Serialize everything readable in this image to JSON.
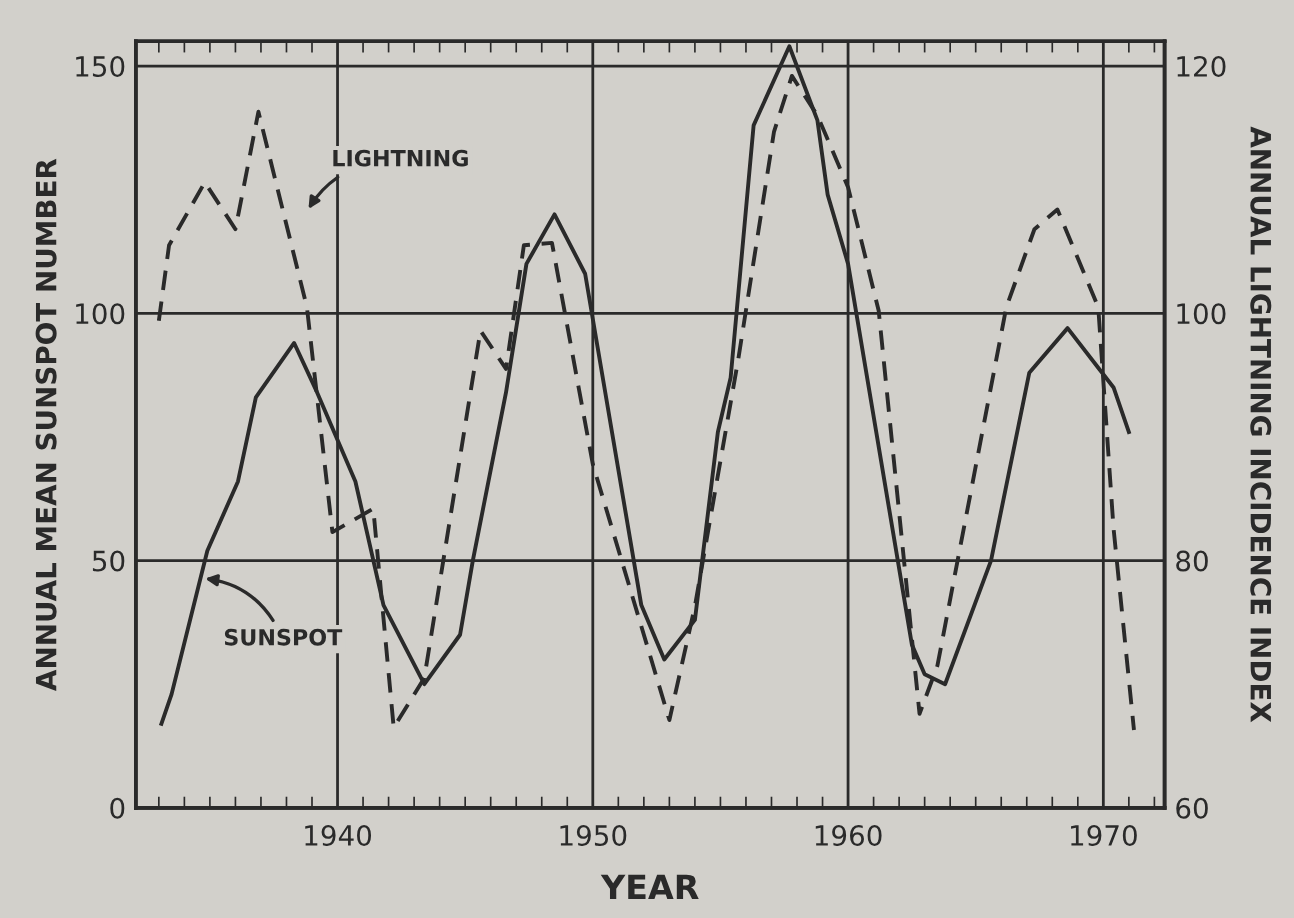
{
  "chart_data": {
    "type": "line",
    "xlabel": "YEAR",
    "ylabel": "ANNUAL MEAN SUNSPOT NUMBER",
    "y2label": "ANNUAL LIGHTNING INCIDENCE INDEX",
    "xlim": [
      1932.1,
      1972.4
    ],
    "xticks": [
      1940,
      1950,
      1960,
      1970
    ],
    "ylim": [
      0,
      155
    ],
    "yticks": [
      0,
      50,
      100,
      150
    ],
    "y2lim": [
      60,
      122
    ],
    "y2ticks": [
      60,
      80,
      100,
      120
    ],
    "grid": true,
    "marker": "none",
    "series": [
      {
        "name": "SUNSPOT",
        "color": "#2a2a2a",
        "line_style": "solid",
        "x": [
          1933.1,
          1933.5,
          1934.9,
          1936.1,
          1936.8,
          1938.3,
          1939.2,
          1940.7,
          1941.8,
          1942.2,
          1943.4,
          1944.8,
          1945.3,
          1946.6,
          1947.4,
          1948.5,
          1949.7,
          1951.9,
          1952.8,
          1954.0,
          1954.9,
          1955.4,
          1956.3,
          1957.7,
          1958.8,
          1959.2,
          1960.0,
          1962.5,
          1963.0,
          1963.8,
          1965.6,
          1967.1,
          1968.6,
          1969.8,
          1970.4,
          1971.0
        ],
        "values": [
          17,
          23,
          52,
          66,
          83,
          94,
          84,
          66,
          41,
          37,
          25,
          35,
          50,
          84,
          110,
          120,
          108,
          41,
          30,
          38,
          76,
          87,
          138,
          154,
          139,
          124,
          110,
          33,
          27,
          25,
          50,
          88,
          97,
          89,
          85,
          76
        ]
      },
      {
        "name": "LIGHTNING",
        "color": "#2a2a2a",
        "line_style": "dashed",
        "axis": "y2",
        "x": [
          1933.0,
          1933.4,
          1934.8,
          1936.0,
          1936.9,
          1938.8,
          1939.8,
          1941.4,
          1942.2,
          1943.4,
          1945.6,
          1946.6,
          1947.3,
          1948.4,
          1950.0,
          1953.0,
          1954.0,
          1955.7,
          1957.1,
          1957.8,
          1958.8,
          1960.0,
          1961.2,
          1962.8,
          1963.5,
          1966.2,
          1967.3,
          1968.2,
          1969.8,
          1970.4,
          1971.2
        ],
        "values": [
          99.4,
          105.5,
          110.6,
          106.8,
          116.3,
          100.5,
          82.3,
          84.2,
          66.5,
          70.5,
          98.6,
          95.5,
          105.5,
          105.7,
          87.8,
          67.1,
          76.3,
          96.3,
          114.7,
          119.2,
          116,
          110.2,
          100.2,
          67.6,
          71.5,
          100.5,
          106.8,
          108.4,
          100.5,
          82.6,
          66.3
        ]
      }
    ]
  }
}
